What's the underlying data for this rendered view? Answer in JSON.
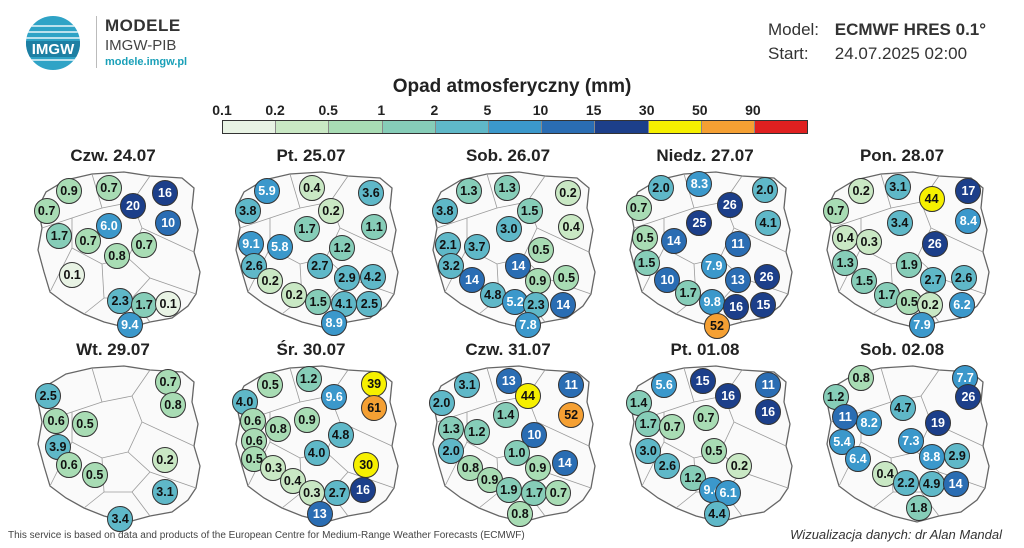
{
  "brand": {
    "name": "MODELE",
    "org": "IMGW-PIB",
    "url": "modele.imgw.pl",
    "logo_text": "IMGW"
  },
  "model": {
    "model_label": "Model:",
    "model_value": "ECMWF HRES 0.1°",
    "start_label": "Start:",
    "start_value": "24.07.2025 02:00"
  },
  "title": "Opad atmosferyczny (mm)",
  "scale": {
    "ticks": [
      "0.1",
      "0.2",
      "0.5",
      "1",
      "2",
      "5",
      "10",
      "15",
      "30",
      "50",
      "90"
    ],
    "colors": [
      "#e8f3e4",
      "#c9e8c4",
      "#a8dcb4",
      "#86cdb8",
      "#5fb8c8",
      "#3b98cb",
      "#2a6db3",
      "#1c3f8a",
      "#f6f000",
      "#f5a033",
      "#e02020"
    ]
  },
  "panels": [
    {
      "title": "Czw. 24.07",
      "dots": [
        [
          "0.9",
          0.2,
          0.12
        ],
        [
          "0.7",
          0.45,
          0.1
        ],
        [
          "16",
          0.8,
          0.13
        ],
        [
          "0.7",
          0.06,
          0.25
        ],
        [
          "20",
          0.6,
          0.22
        ],
        [
          "6.0",
          0.45,
          0.35
        ],
        [
          "10",
          0.82,
          0.33
        ],
        [
          "1.7",
          0.14,
          0.42
        ],
        [
          "0.7",
          0.32,
          0.45
        ],
        [
          "0.7",
          0.67,
          0.48
        ],
        [
          "0.8",
          0.5,
          0.55
        ],
        [
          "0.1",
          0.22,
          0.68
        ],
        [
          "2.3",
          0.52,
          0.85
        ],
        [
          "1.7",
          0.67,
          0.88
        ],
        [
          "0.1",
          0.82,
          0.87
        ],
        [
          "9.4",
          0.58,
          1.01
        ]
      ]
    },
    {
      "title": "Pt. 25.07",
      "dots": [
        [
          "5.9",
          0.2,
          0.12
        ],
        [
          "0.4",
          0.48,
          0.1
        ],
        [
          "3.6",
          0.85,
          0.13
        ],
        [
          "3.8",
          0.08,
          0.25
        ],
        [
          "0.2",
          0.6,
          0.25
        ],
        [
          "1.7",
          0.45,
          0.37
        ],
        [
          "1.1",
          0.87,
          0.36
        ],
        [
          "9.1",
          0.1,
          0.47
        ],
        [
          "5.8",
          0.28,
          0.49
        ],
        [
          "1.2",
          0.67,
          0.5
        ],
        [
          "2.6",
          0.12,
          0.62
        ],
        [
          "2.7",
          0.53,
          0.62
        ],
        [
          "0.2",
          0.22,
          0.72
        ],
        [
          "2.9",
          0.7,
          0.7
        ],
        [
          "4.2",
          0.86,
          0.69
        ],
        [
          "0.2",
          0.37,
          0.81
        ],
        [
          "1.5",
          0.52,
          0.86
        ],
        [
          "4.1",
          0.68,
          0.87
        ],
        [
          "2.5",
          0.84,
          0.87
        ],
        [
          "8.9",
          0.62,
          1.0
        ]
      ]
    },
    {
      "title": "Sob. 26.07",
      "dots": [
        [
          "1.3",
          0.23,
          0.12
        ],
        [
          "1.3",
          0.47,
          0.1
        ],
        [
          "0.2",
          0.85,
          0.13
        ],
        [
          "3.8",
          0.08,
          0.25
        ],
        [
          "1.5",
          0.61,
          0.25
        ],
        [
          "0.4",
          0.87,
          0.36
        ],
        [
          "3.0",
          0.48,
          0.37
        ],
        [
          "2.1",
          0.1,
          0.48
        ],
        [
          "3.7",
          0.28,
          0.49
        ],
        [
          "0.5",
          0.68,
          0.51
        ],
        [
          "3.2",
          0.12,
          0.62
        ],
        [
          "14",
          0.54,
          0.62
        ],
        [
          "14",
          0.25,
          0.71
        ],
        [
          "0.9",
          0.66,
          0.72
        ],
        [
          "0.5",
          0.84,
          0.7
        ],
        [
          "4.8",
          0.38,
          0.81
        ],
        [
          "5.2",
          0.52,
          0.86
        ],
        [
          "2.3",
          0.65,
          0.88
        ],
        [
          "14",
          0.82,
          0.88
        ],
        [
          "7.8",
          0.6,
          1.01
        ]
      ]
    },
    {
      "title": "Niedz. 27.07",
      "dots": [
        [
          "2.0",
          0.2,
          0.1
        ],
        [
          "8.3",
          0.44,
          0.07
        ],
        [
          "2.0",
          0.85,
          0.11
        ],
        [
          "0.7",
          0.06,
          0.23
        ],
        [
          "26",
          0.63,
          0.21
        ],
        [
          "25",
          0.44,
          0.33
        ],
        [
          "4.1",
          0.87,
          0.33
        ],
        [
          "0.5",
          0.1,
          0.43
        ],
        [
          "14",
          0.28,
          0.45
        ],
        [
          "11",
          0.68,
          0.47
        ],
        [
          "1.5",
          0.11,
          0.6
        ],
        [
          "7.9",
          0.53,
          0.62
        ],
        [
          "10",
          0.24,
          0.71
        ],
        [
          "13",
          0.68,
          0.71
        ],
        [
          "26",
          0.86,
          0.69
        ],
        [
          "1.7",
          0.37,
          0.8
        ],
        [
          "9.8",
          0.52,
          0.86
        ],
        [
          "16",
          0.67,
          0.89
        ],
        [
          "15",
          0.84,
          0.88
        ],
        [
          "52",
          0.55,
          1.02
        ]
      ]
    },
    {
      "title": "Pon. 28.07",
      "dots": [
        [
          "0.2",
          0.22,
          0.12
        ],
        [
          "3.1",
          0.45,
          0.09
        ],
        [
          "44",
          0.66,
          0.17
        ],
        [
          "17",
          0.89,
          0.12
        ],
        [
          "0.7",
          0.06,
          0.25
        ],
        [
          "3.4",
          0.46,
          0.33
        ],
        [
          "8.4",
          0.89,
          0.32
        ],
        [
          "0.4",
          0.12,
          0.43
        ],
        [
          "0.3",
          0.27,
          0.46
        ],
        [
          "26",
          0.68,
          0.47
        ],
        [
          "1.3",
          0.12,
          0.6
        ],
        [
          "1.9",
          0.52,
          0.61
        ],
        [
          "1.5",
          0.24,
          0.72
        ],
        [
          "2.7",
          0.67,
          0.71
        ],
        [
          "2.6",
          0.86,
          0.7
        ],
        [
          "1.7",
          0.38,
          0.81
        ],
        [
          "0.5",
          0.52,
          0.86
        ],
        [
          "0.2",
          0.65,
          0.88
        ],
        [
          "6.2",
          0.85,
          0.88
        ],
        [
          "7.9",
          0.6,
          1.01
        ]
      ]
    },
    {
      "title": "Wt. 29.07",
      "dots": [
        [
          "2.5",
          0.07,
          0.19
        ],
        [
          "0.7",
          0.82,
          0.1
        ],
        [
          "0.8",
          0.85,
          0.25
        ],
        [
          "0.6",
          0.12,
          0.36
        ],
        [
          "0.5",
          0.3,
          0.38
        ],
        [
          "3.9",
          0.13,
          0.53
        ],
        [
          "0.6",
          0.2,
          0.65
        ],
        [
          "0.2",
          0.8,
          0.62
        ],
        [
          "0.5",
          0.36,
          0.72
        ],
        [
          "3.1",
          0.8,
          0.83
        ],
        [
          "3.4",
          0.52,
          1.01
        ]
      ]
    },
    {
      "title": "Śr. 30.07",
      "dots": [
        [
          "0.5",
          0.22,
          0.12
        ],
        [
          "1.2",
          0.46,
          0.08
        ],
        [
          "39",
          0.87,
          0.11
        ],
        [
          "4.0",
          0.06,
          0.23
        ],
        [
          "9.6",
          0.62,
          0.2
        ],
        [
          "61",
          0.87,
          0.27
        ],
        [
          "0.6",
          0.11,
          0.36
        ],
        [
          "0.8",
          0.27,
          0.41
        ],
        [
          "0.9",
          0.45,
          0.35
        ],
        [
          "0.6",
          0.12,
          0.49
        ],
        [
          "4.8",
          0.66,
          0.45
        ],
        [
          "0.5",
          0.12,
          0.61
        ],
        [
          "4.0",
          0.51,
          0.57
        ],
        [
          "0.3",
          0.24,
          0.67
        ],
        [
          "30",
          0.82,
          0.65
        ],
        [
          "0.4",
          0.36,
          0.76
        ],
        [
          "0.3",
          0.48,
          0.84
        ],
        [
          "2.7",
          0.64,
          0.84
        ],
        [
          "16",
          0.8,
          0.82
        ],
        [
          "13",
          0.53,
          0.98
        ]
      ]
    },
    {
      "title": "Czw. 31.07",
      "dots": [
        [
          "3.1",
          0.22,
          0.12
        ],
        [
          "13",
          0.48,
          0.09
        ],
        [
          "11",
          0.87,
          0.12
        ],
        [
          "44",
          0.6,
          0.19
        ],
        [
          "2.0",
          0.06,
          0.24
        ],
        [
          "52",
          0.87,
          0.32
        ],
        [
          "1.4",
          0.46,
          0.32
        ],
        [
          "1.3",
          0.12,
          0.41
        ],
        [
          "1.2",
          0.28,
          0.43
        ],
        [
          "10",
          0.64,
          0.45
        ],
        [
          "2.0",
          0.12,
          0.56
        ],
        [
          "1.0",
          0.53,
          0.57
        ],
        [
          "0.8",
          0.24,
          0.67
        ],
        [
          "0.9",
          0.66,
          0.67
        ],
        [
          "14",
          0.83,
          0.64
        ],
        [
          "0.9",
          0.36,
          0.75
        ],
        [
          "1.9",
          0.48,
          0.82
        ],
        [
          "1.7",
          0.64,
          0.84
        ],
        [
          "0.7",
          0.79,
          0.84
        ],
        [
          "0.8",
          0.55,
          0.98
        ]
      ]
    },
    {
      "title": "Pt. 01.08",
      "dots": [
        [
          "5.6",
          0.22,
          0.12
        ],
        [
          "15",
          0.46,
          0.09
        ],
        [
          "11",
          0.87,
          0.12
        ],
        [
          "16",
          0.62,
          0.19
        ],
        [
          "1.4",
          0.06,
          0.24
        ],
        [
          "16",
          0.87,
          0.3
        ],
        [
          "1.7",
          0.12,
          0.38
        ],
        [
          "0.7",
          0.27,
          0.4
        ],
        [
          "0.7",
          0.48,
          0.34
        ],
        [
          "3.0",
          0.12,
          0.56
        ],
        [
          "0.5",
          0.53,
          0.56
        ],
        [
          "2.6",
          0.24,
          0.66
        ],
        [
          "0.2",
          0.69,
          0.66
        ],
        [
          "1.2",
          0.4,
          0.74
        ],
        [
          "9.4",
          0.52,
          0.82
        ],
        [
          "6.1",
          0.62,
          0.84
        ],
        [
          "4.4",
          0.55,
          0.98
        ]
      ]
    },
    {
      "title": "Sob. 02.08",
      "dots": [
        [
          "0.8",
          0.22,
          0.07
        ],
        [
          "7.7",
          0.87,
          0.07
        ],
        [
          "1.2",
          0.06,
          0.2
        ],
        [
          "26",
          0.89,
          0.2
        ],
        [
          "4.7",
          0.48,
          0.27
        ],
        [
          "11",
          0.12,
          0.33
        ],
        [
          "8.2",
          0.27,
          0.37
        ],
        [
          "19",
          0.7,
          0.37
        ],
        [
          "5.4",
          0.1,
          0.5
        ],
        [
          "7.3",
          0.53,
          0.49
        ],
        [
          "6.4",
          0.2,
          0.61
        ],
        [
          "8.8",
          0.66,
          0.6
        ],
        [
          "2.9",
          0.82,
          0.59
        ],
        [
          "0.4",
          0.37,
          0.71
        ],
        [
          "2.2",
          0.5,
          0.77
        ],
        [
          "4.9",
          0.66,
          0.78
        ],
        [
          "14",
          0.81,
          0.78
        ],
        [
          "1.8",
          0.58,
          0.94
        ]
      ]
    }
  ],
  "footer": {
    "credit": "This service is based on data and products of the European Centre for Medium-Range Weather Forecasts (ECMWF)",
    "author": "Wizualizacja danych: dr Alan Mandal"
  }
}
